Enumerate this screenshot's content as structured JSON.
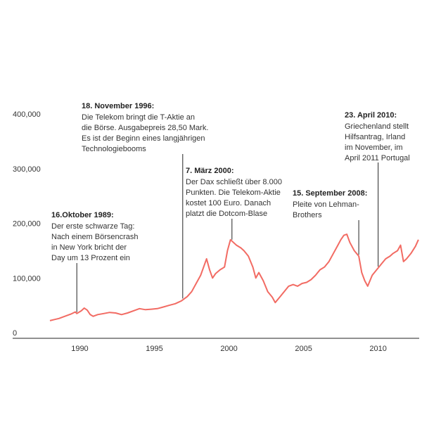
{
  "chart_data": {
    "type": "line",
    "title": "",
    "xlabel": "",
    "ylabel": "",
    "xlim": [
      1985.5,
      2012.75
    ],
    "ylim": [
      0,
      400000
    ],
    "grid": false,
    "line_color": "#f26b63",
    "y_tick_labels": [
      "0",
      "100,000",
      "200,000",
      "300,000",
      "400,000"
    ],
    "y_tick_values": [
      0,
      100000,
      200000,
      300000,
      400000
    ],
    "x_tick_labels": [
      "1990",
      "1995",
      "2000",
      "2005",
      "2010"
    ],
    "x_tick_values": [
      1990,
      1995,
      2000,
      2005,
      2010
    ],
    "series": [
      {
        "values": [
          [
            1988.0,
            22000
          ],
          [
            1988.3,
            24000
          ],
          [
            1988.6,
            26000
          ],
          [
            1989.0,
            30000
          ],
          [
            1989.4,
            34000
          ],
          [
            1989.7,
            38000
          ],
          [
            1989.8,
            35000
          ],
          [
            1990.1,
            40000
          ],
          [
            1990.3,
            45000
          ],
          [
            1990.5,
            41000
          ],
          [
            1990.7,
            33000
          ],
          [
            1990.9,
            30000
          ],
          [
            1991.2,
            33000
          ],
          [
            1991.6,
            35000
          ],
          [
            1992.0,
            37000
          ],
          [
            1992.4,
            36000
          ],
          [
            1992.8,
            33000
          ],
          [
            1993.2,
            36000
          ],
          [
            1993.6,
            40000
          ],
          [
            1994.0,
            44000
          ],
          [
            1994.4,
            42000
          ],
          [
            1994.8,
            43000
          ],
          [
            1995.2,
            44000
          ],
          [
            1995.6,
            47000
          ],
          [
            1996.0,
            50000
          ],
          [
            1996.4,
            53000
          ],
          [
            1996.8,
            58000
          ],
          [
            1997.2,
            66000
          ],
          [
            1997.5,
            75000
          ],
          [
            1997.8,
            90000
          ],
          [
            1998.1,
            105000
          ],
          [
            1998.3,
            120000
          ],
          [
            1998.5,
            135000
          ],
          [
            1998.7,
            115000
          ],
          [
            1998.9,
            100000
          ],
          [
            1999.1,
            108000
          ],
          [
            1999.4,
            115000
          ],
          [
            1999.7,
            120000
          ],
          [
            1999.9,
            150000
          ],
          [
            2000.1,
            170000
          ],
          [
            2000.3,
            165000
          ],
          [
            2000.5,
            160000
          ],
          [
            2000.8,
            155000
          ],
          [
            2001.0,
            150000
          ],
          [
            2001.3,
            140000
          ],
          [
            2001.6,
            120000
          ],
          [
            2001.8,
            100000
          ],
          [
            2002.0,
            110000
          ],
          [
            2002.3,
            95000
          ],
          [
            2002.6,
            75000
          ],
          [
            2002.9,
            65000
          ],
          [
            2003.1,
            55000
          ],
          [
            2003.4,
            65000
          ],
          [
            2003.7,
            75000
          ],
          [
            2004.0,
            85000
          ],
          [
            2004.3,
            88000
          ],
          [
            2004.6,
            85000
          ],
          [
            2004.9,
            90000
          ],
          [
            2005.2,
            92000
          ],
          [
            2005.5,
            97000
          ],
          [
            2005.8,
            105000
          ],
          [
            2006.1,
            115000
          ],
          [
            2006.4,
            120000
          ],
          [
            2006.7,
            130000
          ],
          [
            2007.0,
            145000
          ],
          [
            2007.3,
            160000
          ],
          [
            2007.5,
            170000
          ],
          [
            2007.7,
            178000
          ],
          [
            2007.9,
            180000
          ],
          [
            2008.1,
            165000
          ],
          [
            2008.4,
            150000
          ],
          [
            2008.7,
            140000
          ],
          [
            2008.9,
            110000
          ],
          [
            2009.1,
            95000
          ],
          [
            2009.3,
            85000
          ],
          [
            2009.6,
            105000
          ],
          [
            2009.9,
            115000
          ],
          [
            2010.2,
            125000
          ],
          [
            2010.5,
            135000
          ],
          [
            2010.8,
            140000
          ],
          [
            2011.0,
            145000
          ],
          [
            2011.3,
            150000
          ],
          [
            2011.5,
            160000
          ],
          [
            2011.7,
            130000
          ],
          [
            2011.9,
            135000
          ],
          [
            2012.2,
            145000
          ],
          [
            2012.5,
            158000
          ],
          [
            2012.7,
            170000
          ]
        ]
      }
    ],
    "annotations": [
      {
        "date": "16.Oktober 1989:",
        "lines": [
          "Der erste schwarze Tag:",
          "Nach einem Börsencrash",
          "in New York bricht der",
          "Day um 13 Prozent ein"
        ],
        "x": 1989.8
      },
      {
        "date": "18. November 1996:",
        "lines": [
          "Die Telekom bringt die T-Aktie an",
          "die Börse. Ausgabepreis 28,50 Mark.",
          "Es ist der Beginn eines langjährigen",
          "Technologiebooms"
        ],
        "x": 1996.9
      },
      {
        "date": "7. März 2000:",
        "lines": [
          "Der Dax schließt über 8.000",
          "Punkten. Die Telekom-Aktie",
          "kostet 100 Euro. Danach",
          "platzt die Dotcom-Blase"
        ],
        "x": 2000.2
      },
      {
        "date": "15. September 2008:",
        "lines": [
          "Pleite von Lehman-",
          "Brothers"
        ],
        "x": 2008.7
      },
      {
        "date": "23. April 2010:",
        "lines": [
          "Griechenland stellt",
          "Hilfsantrag, Irland",
          "im November, im",
          "April 2011 Portugal"
        ],
        "x": 2010.0
      }
    ]
  }
}
